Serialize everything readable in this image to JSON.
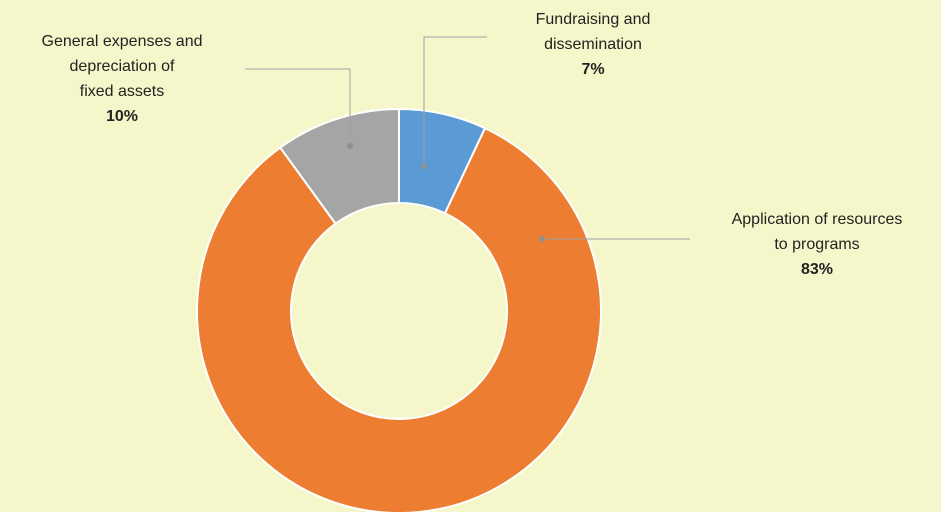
{
  "chart_data": {
    "type": "donut",
    "categories": [
      "Fundraising and\ndissemination",
      "Application of resources\nto programs",
      "General expenses and\ndepreciation of\nfixed assets"
    ],
    "values": [
      7,
      83,
      10
    ],
    "value_labels": [
      "7%",
      "83%",
      "10%"
    ],
    "colors": [
      "#5b9bd5",
      "#ed7d31",
      "#a5a5a5"
    ]
  }
}
